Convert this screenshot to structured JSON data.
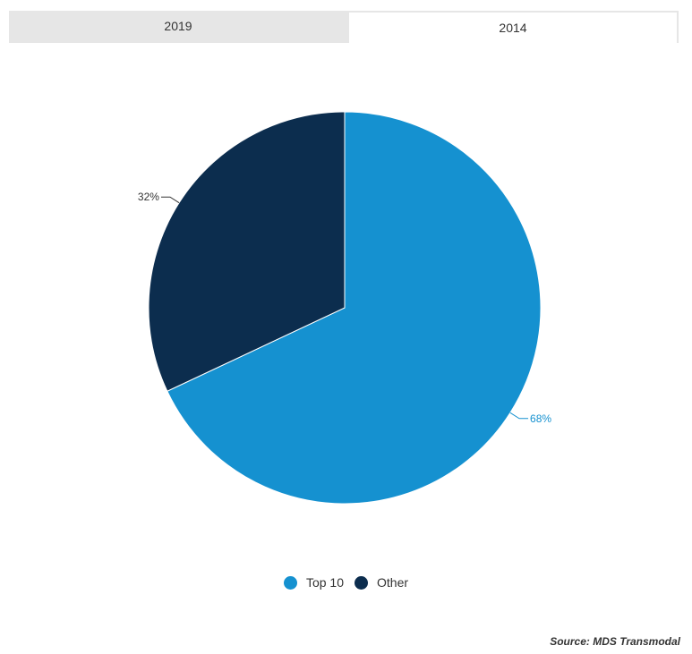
{
  "tabs": [
    {
      "label": "2019",
      "active": false
    },
    {
      "label": "2014",
      "active": true
    }
  ],
  "chart_data": {
    "type": "pie",
    "slices": [
      {
        "name": "Top 10",
        "value": 68,
        "label": "68%",
        "color": "#1591d0"
      },
      {
        "name": "Other",
        "value": 32,
        "label": "32%",
        "color": "#0c2d4e"
      }
    ],
    "legend_position": "bottom-center"
  },
  "legend": [
    {
      "label": "Top 10",
      "color": "#1591d0"
    },
    {
      "label": "Other",
      "color": "#0c2d4e"
    }
  ],
  "source": "Source: MDS Transmodal"
}
